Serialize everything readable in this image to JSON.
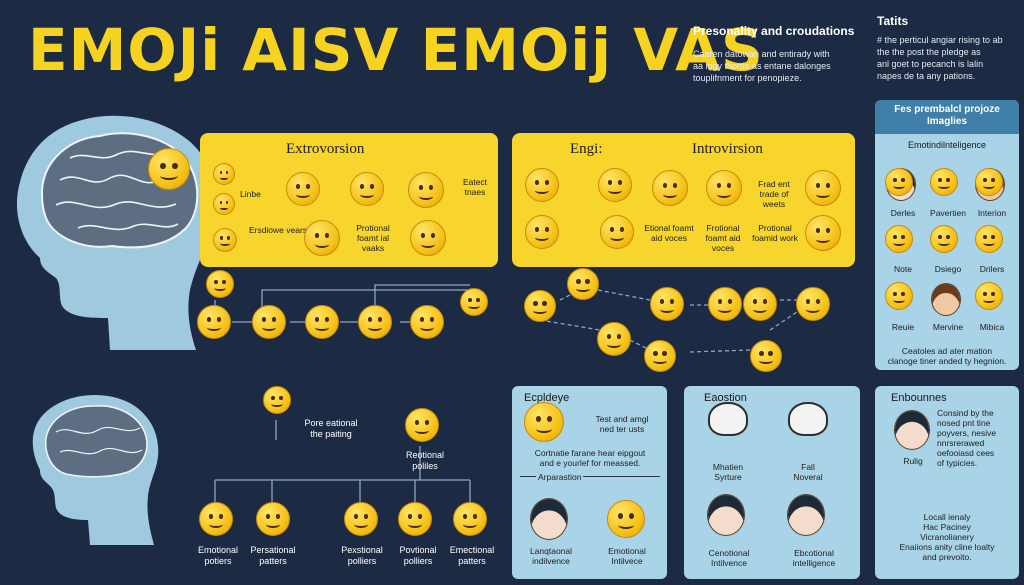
{
  "title": "EMOJi AISV EMOij VAS",
  "header": {
    "section1_title": "Presonality and croudations",
    "section1_text": [
      "Caaren datowan and entirady with",
      "aa logy thortie as entane dalonges",
      "touplifnment for penopieze."
    ],
    "section2_title": "Tatits",
    "section2_text": [
      "# the perticul angiar rising to ab",
      "the the post the pledge as",
      "anl goet to pecanch is lalin",
      "napes de ta any pations."
    ]
  },
  "extroversion": {
    "title": "Extrovorsion",
    "labels": [
      "Linbe",
      "Ersdiowe vears",
      "Protional foamt ial vaaks",
      "Eatect tnaes"
    ]
  },
  "introversion": {
    "title_left": "Engi:",
    "title": "Introvirsion",
    "labels": [
      "Etional foamt aid voces",
      "Frotional foamt aid voces",
      "Protional foamid work",
      "Frad ent trade of weets"
    ]
  },
  "right_panel": {
    "heading": "Fes prembalcl projoze Imaglies",
    "subheading": "Emotindilnteligence",
    "labels": [
      "Derles",
      "Pavertien",
      "Interion",
      "Note",
      "Dsiego",
      "Drilers",
      "Reuie",
      "Mervine",
      "Mibica"
    ],
    "footer": [
      "Ceatoles ad ater mation",
      "clanoge tiner anded ty hegnion."
    ]
  },
  "bottom_left": {
    "label1": [
      "Pore eational",
      "the paiting"
    ],
    "label2": [
      "Reotional poliles"
    ],
    "bottom_labels": [
      [
        "Emotional",
        "potiers"
      ],
      [
        "Persational",
        "patters"
      ],
      [
        "Pexstional",
        "polliers"
      ],
      [
        "Povtional",
        "polliers"
      ],
      [
        "Emectional",
        "patters"
      ]
    ]
  },
  "panel_a": {
    "title": "Ecpldeye",
    "text1": [
      "Test and amgl",
      "ned ter usts"
    ],
    "text2": [
      "Cortnatie farane hear eipgout",
      "and e yourlef for meassed."
    ],
    "arrow_label": "Arparastion",
    "labels": [
      [
        "Lanqtaonal",
        "indilvence"
      ],
      [
        "Emotional",
        "Intilvece"
      ]
    ]
  },
  "panel_b": {
    "title": "Eaostion",
    "mid_labels": [
      [
        "Mhatien",
        "Syrture"
      ],
      [
        "Fall",
        "Noveral"
      ]
    ],
    "labels": [
      [
        "Cenotional",
        "Intilvence"
      ],
      [
        "Ebcotional",
        "intelligence"
      ]
    ]
  },
  "panel_c": {
    "title": "Enbounnes",
    "avatar_label": "Rulig",
    "text": [
      "Consind by the",
      "nosed pnt tine",
      "poyvers, nesive",
      "nnrsrerawed",
      "oefooiasd cees",
      "of typicies."
    ],
    "footer": [
      "Locall ienaly",
      "Hac Paciney",
      "Vicranolianery",
      "Enaiions anity cline loalty",
      "and prevoito."
    ]
  },
  "colors": {
    "background": "#1c2a44",
    "accent": "#f6d320",
    "panel_blue": "#a9d3e6"
  }
}
